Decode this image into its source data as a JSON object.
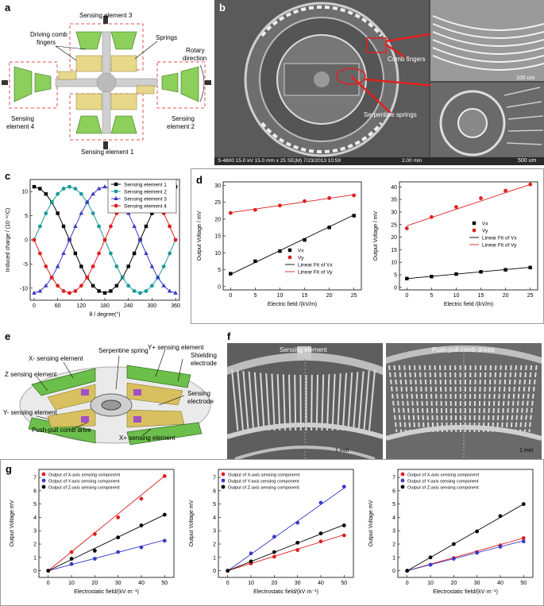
{
  "labels": {
    "a": "a",
    "b": "b",
    "c": "c",
    "d": "d",
    "e": "e",
    "f": "f",
    "g": "g"
  },
  "panel_a": {
    "sensing_element_3": "Sensing element 3",
    "driving_comb_1": "Driving comb",
    "driving_comb_2": "fingers",
    "springs": "Springs",
    "rotary_1": "Rotary",
    "rotary_2": "direction",
    "sensing_4_1": "Sensing",
    "sensing_4_2": "element 4",
    "sensing_2_1": "Sensing",
    "sensing_2_2": "element 2",
    "sensing_element_1": "Sensing element 1"
  },
  "panel_b": {
    "comb_fingers": "Comb fingers",
    "serpentine": "Serpentine springs",
    "scale1": "100 um",
    "scale2": "500 um",
    "footer": "S-4800 15.0 kV 15.0 mm x 25 SE(M) 7/23/2013 10:59",
    "footer_scale": "2.00 mm"
  },
  "panel_e": {
    "x_minus": "X- sensing element",
    "serpentine": "Serpentine spring",
    "y_plus": "Y+ sensing element",
    "shield_1": "Shielding",
    "shield_2": "electrode",
    "z_sens": "Z sensing element",
    "sens_elec_1": "Sensing",
    "sens_elec_2": "electrode",
    "y_minus": "Y- sensing element",
    "push_pull": "Push-pull comb drive",
    "x_plus": "X+ sensing element"
  },
  "panel_f": {
    "left_title": "Sensing element",
    "right_title": "Push-pull comb drives",
    "scale_left": "1 mm",
    "scale_right": "1 mm"
  },
  "colors": {
    "black": "#000000",
    "cyan": "#1a9a9a",
    "blue": "#3a3ac8",
    "red": "#e02020"
  },
  "chart_data": [
    {
      "id": "c",
      "type": "line",
      "xlabel": "θ / degree(°)",
      "ylabel": "Induced charge / (10⁻¹⁵C)",
      "xlim": [
        -10,
        370
      ],
      "ylim": [
        -12.5,
        12.5
      ],
      "xticks": [
        0,
        60,
        120,
        180,
        240,
        300,
        360
      ],
      "yticks": [
        -10,
        -5,
        0,
        5,
        10
      ],
      "x": [
        0,
        15,
        30,
        45,
        60,
        75,
        90,
        105,
        120,
        135,
        150,
        165,
        180,
        195,
        210,
        225,
        240,
        255,
        270,
        285,
        300,
        315,
        330,
        345,
        360
      ],
      "series": [
        {
          "name": "Sensing element 1",
          "color": "#000000",
          "marker": "square",
          "values": [
            11,
            10.6,
            9.5,
            7.8,
            5.5,
            2.8,
            0,
            -2.8,
            -5.5,
            -7.8,
            -9.5,
            -10.6,
            -11,
            -10.6,
            -9.5,
            -7.8,
            -5.5,
            -2.8,
            0,
            2.8,
            5.5,
            7.8,
            9.5,
            10.6,
            11
          ]
        },
        {
          "name": "Sensing element 2",
          "color": "#1a9a9a",
          "marker": "circle",
          "values": [
            0,
            2.8,
            5.5,
            7.8,
            9.5,
            10.6,
            11,
            10.6,
            9.5,
            7.8,
            5.5,
            2.8,
            0,
            -2.8,
            -5.5,
            -7.8,
            -9.5,
            -10.6,
            -11,
            -10.6,
            -9.5,
            -7.8,
            -5.5,
            -2.8,
            0
          ]
        },
        {
          "name": "Sensing element 3",
          "color": "#3a3ac8",
          "marker": "triangle",
          "values": [
            -11,
            -10.6,
            -9.5,
            -7.8,
            -5.5,
            -2.8,
            0,
            2.8,
            5.5,
            7.8,
            9.5,
            10.6,
            11,
            10.6,
            9.5,
            7.8,
            5.5,
            2.8,
            0,
            -2.8,
            -5.5,
            -7.8,
            -9.5,
            -10.6,
            -11
          ]
        },
        {
          "name": "Sensing element 4",
          "color": "#e02020",
          "marker": "circle",
          "values": [
            0,
            -2.8,
            -5.5,
            -7.8,
            -9.5,
            -10.6,
            -11,
            -10.6,
            -9.5,
            -7.8,
            -5.5,
            -2.8,
            0,
            2.8,
            5.5,
            7.8,
            9.5,
            10.6,
            11,
            10.6,
            9.5,
            7.8,
            5.5,
            2.8,
            0
          ]
        }
      ]
    },
    {
      "id": "d1",
      "type": "scatter",
      "xlabel": "Electric field /(kV/m)",
      "ylabel": "Output Voltage / mV",
      "xlim": [
        -1.5,
        26.5
      ],
      "ylim": [
        -1,
        31
      ],
      "xticks": [
        0,
        5,
        10,
        15,
        20,
        25
      ],
      "yticks": [
        0,
        5,
        10,
        15,
        20,
        25,
        30
      ],
      "legend": [
        "Vx",
        "Vy",
        "Linear Fit of Vx",
        "Linear Fit of Vy"
      ],
      "x": [
        0,
        5,
        10,
        15,
        20,
        25
      ],
      "series": [
        {
          "name": "Vx",
          "color": "#000000",
          "marker": "square",
          "values": [
            3.8,
            7.5,
            10.5,
            13.8,
            17.5,
            21
          ],
          "fit": [
            3.6,
            21.2
          ]
        },
        {
          "name": "Vy",
          "color": "#e02020",
          "marker": "circle",
          "values": [
            21.8,
            22.7,
            24,
            25.3,
            26.2,
            27
          ],
          "fit": [
            21.9,
            27.2
          ]
        }
      ]
    },
    {
      "id": "d2",
      "type": "scatter",
      "xlabel": "Electric field /(kV/m)",
      "ylabel": "Output Voltage / mV",
      "xlim": [
        -1.5,
        26.5
      ],
      "ylim": [
        -1,
        42
      ],
      "xticks": [
        0,
        5,
        10,
        15,
        20,
        25
      ],
      "yticks": [
        0,
        5,
        10,
        15,
        20,
        25,
        30,
        35,
        40
      ],
      "legend": [
        "Vx",
        "Vy",
        "Linear Fit of Vx",
        "Linear Fit of Vy"
      ],
      "x": [
        0,
        5,
        10,
        15,
        20,
        25
      ],
      "series": [
        {
          "name": "Vx",
          "color": "#000000",
          "marker": "square",
          "values": [
            3.5,
            4.3,
            5.3,
            6.2,
            7,
            7.9
          ],
          "fit": [
            3.5,
            8
          ]
        },
        {
          "name": "Vy",
          "color": "#e02020",
          "marker": "circle",
          "values": [
            23.5,
            28,
            32,
            35.5,
            38.5,
            41
          ],
          "fit": [
            24.5,
            41
          ]
        }
      ]
    },
    {
      "id": "g1",
      "type": "scatter",
      "xlabel": "Electrostatic field/(kV·m⁻¹)",
      "ylabel": "Output Voltage mV",
      "xlim": [
        -4,
        54
      ],
      "ylim": [
        -0.5,
        7.6
      ],
      "xticks": [
        0,
        10,
        20,
        30,
        40,
        50
      ],
      "yticks": [
        0,
        1,
        2,
        3,
        4,
        5,
        6,
        7
      ],
      "legend": [
        "Output of X-axis sensing component",
        "Output of Y-axis sensing component",
        "Output of Z-axis sensing component"
      ],
      "x": [
        0,
        10,
        20,
        30,
        40,
        50
      ],
      "series": [
        {
          "name": "X",
          "color": "#e02020",
          "values": [
            0,
            1.4,
            2.75,
            4,
            5.4,
            7.1
          ],
          "fit": [
            0,
            7.1
          ]
        },
        {
          "name": "Y",
          "color": "#3a3ac8",
          "values": [
            0,
            0.5,
            0.9,
            1.4,
            1.75,
            2.25
          ],
          "fit": [
            0,
            2.3
          ]
        },
        {
          "name": "Z",
          "color": "#000000",
          "values": [
            0,
            0.9,
            1.5,
            2.5,
            3.4,
            4.2
          ],
          "fit": [
            0,
            4.2
          ]
        }
      ]
    },
    {
      "id": "g2",
      "type": "scatter",
      "xlabel": "Electrostatic field/(kV·m⁻¹)",
      "ylabel": "Output Voltage mV",
      "xlim": [
        -4,
        54
      ],
      "ylim": [
        -0.5,
        7.6
      ],
      "xticks": [
        0,
        10,
        20,
        30,
        40,
        50
      ],
      "yticks": [
        0,
        1,
        2,
        3,
        4,
        5,
        6,
        7
      ],
      "legend": [
        "Output of X-axis sensing component",
        "Output of Y-axis sensing component",
        "Output of Z-axis sensing component"
      ],
      "x": [
        0,
        10,
        20,
        30,
        40,
        50
      ],
      "series": [
        {
          "name": "X",
          "color": "#e02020",
          "values": [
            0,
            0.55,
            1.05,
            1.55,
            2.2,
            2.65
          ],
          "fit": [
            0,
            2.7
          ]
        },
        {
          "name": "Y",
          "color": "#3a3ac8",
          "values": [
            0,
            1.3,
            2.55,
            3.6,
            5.1,
            6.3
          ],
          "fit": [
            0,
            6.2
          ]
        },
        {
          "name": "Z",
          "color": "#000000",
          "values": [
            0,
            0.7,
            1.4,
            2.1,
            2.8,
            3.4
          ],
          "fit": [
            0,
            3.45
          ]
        }
      ]
    },
    {
      "id": "g3",
      "type": "scatter",
      "xlabel": "Electrostatic field/(kV·m⁻¹)",
      "ylabel": "Output Voltage mV",
      "xlim": [
        -4,
        54
      ],
      "ylim": [
        -0.5,
        7.6
      ],
      "xticks": [
        0,
        10,
        20,
        30,
        40,
        50
      ],
      "yticks": [
        0,
        1,
        2,
        3,
        4,
        5,
        6,
        7
      ],
      "legend": [
        "Output of X-axis sensing component",
        "Output of Y-axis sensing component",
        "Output of Z-axis sensing component"
      ],
      "x": [
        0,
        10,
        20,
        30,
        40,
        50
      ],
      "series": [
        {
          "name": "X",
          "color": "#e02020",
          "values": [
            0,
            0.45,
            0.95,
            1.4,
            1.9,
            2.45
          ],
          "fit": [
            0,
            2.45
          ]
        },
        {
          "name": "Y",
          "color": "#3a3ac8",
          "values": [
            0,
            0.45,
            0.9,
            1.35,
            1.8,
            2.2
          ],
          "fit": [
            0,
            2.25
          ]
        },
        {
          "name": "Z",
          "color": "#000000",
          "values": [
            0,
            1,
            2,
            2.95,
            4.1,
            5
          ],
          "fit": [
            0,
            5
          ]
        }
      ]
    }
  ]
}
